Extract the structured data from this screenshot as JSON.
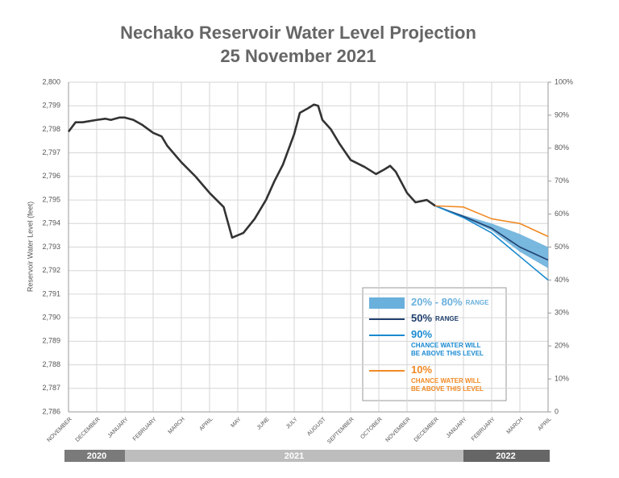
{
  "chart_data": {
    "type": "line",
    "title": "Nechako Reservoir Water Level Projection",
    "subtitle": "25 November 2021",
    "y_label": "Reservoir Water Level (feet)",
    "grid": true,
    "xlim": [
      0,
      17
    ],
    "xticks": [
      {
        "value": 0,
        "label": "NOVEMBER"
      },
      {
        "value": 1,
        "label": "DECEMBER"
      },
      {
        "value": 2,
        "label": "JANUARY"
      },
      {
        "value": 3,
        "label": "FEBRUARY"
      },
      {
        "value": 4,
        "label": "MARCH"
      },
      {
        "value": 5,
        "label": "APRIL"
      },
      {
        "value": 6,
        "label": "MAY"
      },
      {
        "value": 7,
        "label": "JUNE"
      },
      {
        "value": 8,
        "label": "JULY"
      },
      {
        "value": 9,
        "label": "AUGUST"
      },
      {
        "value": 10,
        "label": "SEPTEMBER"
      },
      {
        "value": 11,
        "label": "OCTOBER"
      },
      {
        "value": 12,
        "label": "NOVEMBER"
      },
      {
        "value": 13,
        "label": "DECEMBER"
      },
      {
        "value": 14,
        "label": "JANUARY"
      },
      {
        "value": 15,
        "label": "FEBRUARY"
      },
      {
        "value": 16,
        "label": "MARCH"
      },
      {
        "value": 17,
        "label": "APRIL"
      }
    ],
    "years": [
      {
        "label": "2020",
        "from": 0,
        "to": 2,
        "color": "#7a7a7a"
      },
      {
        "label": "2021",
        "from": 2,
        "to": 14,
        "color": "#bdbdbd"
      },
      {
        "label": "2022",
        "from": 14,
        "to": 17,
        "color": "#666666"
      }
    ],
    "ylim": [
      2786,
      2800
    ],
    "yticks": [
      {
        "value": 2786,
        "label": "2,786"
      },
      {
        "value": 2787,
        "label": "2,787"
      },
      {
        "value": 2788,
        "label": "2,788"
      },
      {
        "value": 2789,
        "label": "2,789"
      },
      {
        "value": 2790,
        "label": "2,790"
      },
      {
        "value": 2791,
        "label": "2,791"
      },
      {
        "value": 2792,
        "label": "2,792"
      },
      {
        "value": 2793,
        "label": "2,793"
      },
      {
        "value": 2794,
        "label": "2,794"
      },
      {
        "value": 2795,
        "label": "2,795"
      },
      {
        "value": 2796,
        "label": "2,796"
      },
      {
        "value": 2797,
        "label": "2,797"
      },
      {
        "value": 2798,
        "label": "2,798"
      },
      {
        "value": 2799,
        "label": "2,799"
      },
      {
        "value": 2800,
        "label": "2,800"
      }
    ],
    "y2lim": [
      0,
      100
    ],
    "y2ticks": [
      0,
      {
        "value": 10,
        "label": "10%"
      },
      {
        "value": 20,
        "label": "20%"
      },
      {
        "value": 30,
        "label": "30%"
      },
      {
        "value": 40,
        "label": "40%"
      },
      {
        "value": 50,
        "label": "50%"
      },
      {
        "value": 60,
        "label": "60%"
      },
      {
        "value": 70,
        "label": "70%"
      },
      {
        "value": 80,
        "label": "80%"
      },
      {
        "value": 90,
        "label": "90%"
      },
      {
        "value": 100,
        "label": "100%"
      }
    ],
    "series": [
      {
        "kind": "band",
        "name": "20% - 80%",
        "description": "RANGE",
        "color": "#6ab0dc",
        "x": [
          13,
          14,
          15,
          16,
          17
        ],
        "upper": [
          2794.75,
          2794.35,
          2794.0,
          2793.55,
          2793.0
        ],
        "lower": [
          2794.75,
          2794.25,
          2793.7,
          2792.8,
          2792.1
        ]
      },
      {
        "kind": "line",
        "name": "50%",
        "description": "RANGE",
        "color": "#1f3f6e",
        "x": [
          13,
          14,
          15,
          16,
          17
        ],
        "values": [
          2794.75,
          2794.3,
          2793.8,
          2793.0,
          2792.45
        ]
      },
      {
        "kind": "line",
        "name": "90%",
        "description": "CHANCE WATER WILL BE ABOVE THIS LEVEL",
        "color": "#1a8ad0",
        "x": [
          13,
          14,
          15,
          16,
          17
        ],
        "values": [
          2794.75,
          2794.25,
          2793.6,
          2792.6,
          2791.6
        ]
      },
      {
        "kind": "line",
        "name": "10%",
        "description": "CHANCE WATER WILL BE ABOVE THIS LEVEL",
        "color": "#f08a24",
        "x": [
          13,
          14,
          15,
          16,
          17
        ],
        "values": [
          2794.75,
          2794.7,
          2794.2,
          2794.0,
          2793.45
        ]
      },
      {
        "kind": "line",
        "color": "#333333",
        "x": [
          0,
          0.25,
          0.5,
          1,
          1.3,
          1.5,
          1.8,
          2,
          2.3,
          2.6,
          3,
          3.3,
          3.5,
          4,
          4.5,
          5,
          5.5,
          5.8,
          6.2,
          6.6,
          7,
          7.3,
          7.6,
          8,
          8.2,
          8.5,
          8.7,
          8.85,
          9,
          9.3,
          9.6,
          10,
          10.5,
          10.9,
          11.2,
          11.4,
          11.6,
          12,
          12.3,
          12.7,
          13
        ],
        "values": [
          2797.9,
          2798.3,
          2798.3,
          2798.4,
          2798.45,
          2798.4,
          2798.5,
          2798.5,
          2798.4,
          2798.2,
          2797.85,
          2797.7,
          2797.3,
          2796.6,
          2796.0,
          2795.3,
          2794.7,
          2793.4,
          2793.6,
          2794.2,
          2795.0,
          2795.8,
          2796.5,
          2797.8,
          2798.7,
          2798.9,
          2799.05,
          2799.0,
          2798.4,
          2798.0,
          2797.4,
          2796.7,
          2796.4,
          2796.1,
          2796.3,
          2796.45,
          2796.2,
          2795.3,
          2794.9,
          2795.0,
          2794.75
        ]
      }
    ]
  }
}
